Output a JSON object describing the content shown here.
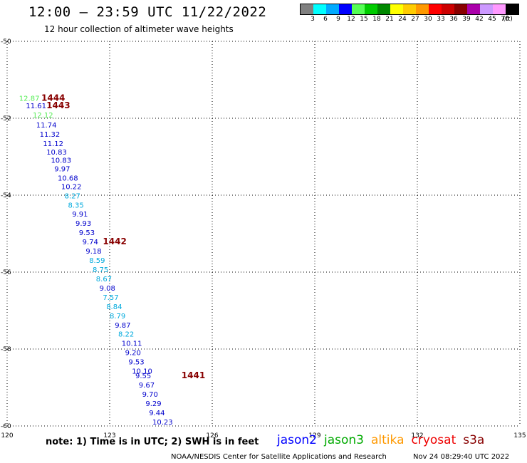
{
  "header": {
    "title": "12:00 – 23:59 UTC 11/22/2022",
    "subtitle": "12 hour collection of altimeter wave heights"
  },
  "colorbar": {
    "colors": [
      "#808080",
      "#00ffff",
      "#00aaff",
      "#0000ff",
      "#55ff55",
      "#00cc00",
      "#008800",
      "#ffff00",
      "#ffcc00",
      "#ff9900",
      "#ff0000",
      "#cc0000",
      "#880000",
      "#aa00aa",
      "#cc99ff",
      "#ff99ff",
      "#000000"
    ],
    "labels": [
      "3",
      "6",
      "9",
      "12",
      "15",
      "18",
      "21",
      "24",
      "27",
      "30",
      "33",
      "36",
      "39",
      "42",
      "45",
      "70",
      "(ft)"
    ]
  },
  "chart_data": {
    "type": "scatter",
    "xlim": [
      120,
      135
    ],
    "ylim": [
      -60,
      -50
    ],
    "x_ticks": [
      "120",
      "123",
      "126",
      "129",
      "132",
      "135"
    ],
    "y_ticks": [
      "-50",
      "-52",
      "-54",
      "-56",
      "-58",
      "-60"
    ],
    "points": [
      {
        "lon": 120.35,
        "lat": -51.55,
        "value": "12.87",
        "color": "#55ee55"
      },
      {
        "lon": 120.55,
        "lat": -51.74,
        "value": "11.61",
        "color": "#0000cc"
      },
      {
        "lon": 120.75,
        "lat": -51.98,
        "value": "12.12",
        "color": "#55ee55"
      },
      {
        "lon": 120.85,
        "lat": -52.24,
        "value": "11.74",
        "color": "#0000cc"
      },
      {
        "lon": 120.95,
        "lat": -52.48,
        "value": "11.32",
        "color": "#0000cc"
      },
      {
        "lon": 121.05,
        "lat": -52.72,
        "value": "11.12",
        "color": "#0000cc"
      },
      {
        "lon": 121.15,
        "lat": -52.94,
        "value": "10.83",
        "color": "#0000cc"
      },
      {
        "lon": 121.28,
        "lat": -53.16,
        "value": "10.83",
        "color": "#0000cc"
      },
      {
        "lon": 121.38,
        "lat": -53.38,
        "value": "9.97",
        "color": "#0000cc"
      },
      {
        "lon": 121.48,
        "lat": -53.62,
        "value": "10.68",
        "color": "#0000cc"
      },
      {
        "lon": 121.58,
        "lat": -53.84,
        "value": "10.22",
        "color": "#0000cc"
      },
      {
        "lon": 121.68,
        "lat": -54.08,
        "value": "8.27",
        "color": "#00aadd"
      },
      {
        "lon": 121.78,
        "lat": -54.32,
        "value": "8.35",
        "color": "#00aadd"
      },
      {
        "lon": 121.9,
        "lat": -54.56,
        "value": "9.91",
        "color": "#0000cc"
      },
      {
        "lon": 122.0,
        "lat": -54.8,
        "value": "9.93",
        "color": "#0000cc"
      },
      {
        "lon": 122.1,
        "lat": -55.04,
        "value": "9.53",
        "color": "#0000cc"
      },
      {
        "lon": 122.2,
        "lat": -55.28,
        "value": "9.74",
        "color": "#0000cc"
      },
      {
        "lon": 122.3,
        "lat": -55.52,
        "value": "9.18",
        "color": "#0000cc"
      },
      {
        "lon": 122.4,
        "lat": -55.76,
        "value": "8.59",
        "color": "#00aadd"
      },
      {
        "lon": 122.5,
        "lat": -56.0,
        "value": "8.75",
        "color": "#00aadd"
      },
      {
        "lon": 122.6,
        "lat": -56.24,
        "value": "8.67",
        "color": "#00aadd"
      },
      {
        "lon": 122.7,
        "lat": -56.48,
        "value": "9.08",
        "color": "#0000cc"
      },
      {
        "lon": 122.8,
        "lat": -56.72,
        "value": "7.57",
        "color": "#00aadd"
      },
      {
        "lon": 122.9,
        "lat": -56.96,
        "value": "8.84",
        "color": "#00aadd"
      },
      {
        "lon": 123.0,
        "lat": -57.2,
        "value": "8.79",
        "color": "#00aadd"
      },
      {
        "lon": 123.15,
        "lat": -57.44,
        "value": "9.87",
        "color": "#0000cc"
      },
      {
        "lon": 123.25,
        "lat": -57.68,
        "value": "8.22",
        "color": "#00aadd"
      },
      {
        "lon": 123.35,
        "lat": -57.92,
        "value": "10.11",
        "color": "#0000cc"
      },
      {
        "lon": 123.45,
        "lat": -58.16,
        "value": "9.20",
        "color": "#0000cc"
      },
      {
        "lon": 123.55,
        "lat": -58.4,
        "value": "9.53",
        "color": "#0000cc"
      },
      {
        "lon": 123.65,
        "lat": -58.64,
        "value": "10.10",
        "color": "#0000cc"
      },
      {
        "lon": 123.75,
        "lat": -58.76,
        "value": "9.55",
        "color": "#0000cc"
      },
      {
        "lon": 123.85,
        "lat": -59.0,
        "value": "9.67",
        "color": "#0000cc"
      },
      {
        "lon": 123.95,
        "lat": -59.24,
        "value": "9.70",
        "color": "#0000cc"
      },
      {
        "lon": 124.05,
        "lat": -59.48,
        "value": "9.29",
        "color": "#0000cc"
      },
      {
        "lon": 124.15,
        "lat": -59.72,
        "value": "9.44",
        "color": "#0000cc"
      },
      {
        "lon": 124.25,
        "lat": -59.96,
        "value": "10.23",
        "color": "#0000cc"
      }
    ],
    "pass_labels": [
      {
        "lon": 121.0,
        "lat": -51.55,
        "text": "1444"
      },
      {
        "lon": 121.15,
        "lat": -51.74,
        "text": "1443"
      },
      {
        "lon": 122.8,
        "lat": -55.28,
        "text": "1442"
      },
      {
        "lon": 125.1,
        "lat": -58.76,
        "text": "1441"
      }
    ]
  },
  "note": "note:  1) Time is in UTC; 2) SWH is in feet",
  "legend": [
    {
      "name": "jason2",
      "color": "#0000ff"
    },
    {
      "name": "jason3",
      "color": "#00aa00"
    },
    {
      "name": "altika",
      "color": "#ff9900"
    },
    {
      "name": "cryosat",
      "color": "#ee0000"
    },
    {
      "name": "s3a",
      "color": "#880000"
    }
  ],
  "footer": {
    "credit": "NOAA/NESDIS Center for Satellite Applications and Research",
    "timestamp": "Nov 24 08:29:40 UTC 2022"
  }
}
